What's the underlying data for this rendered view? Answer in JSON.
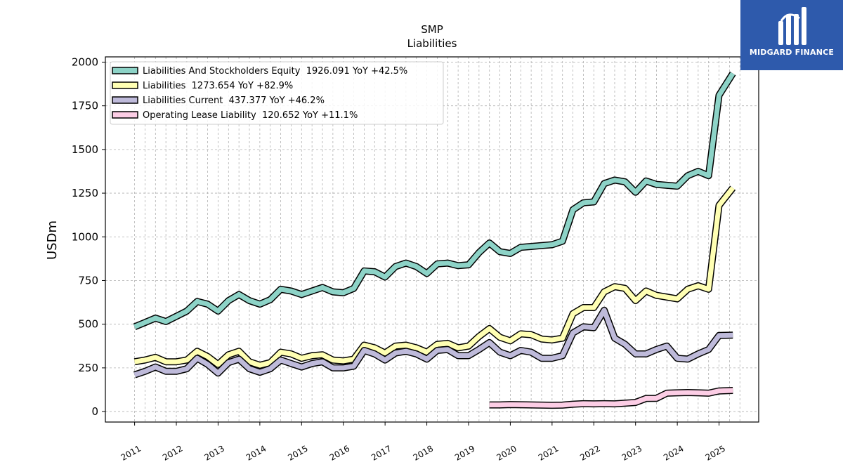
{
  "brand": {
    "name": "MIDGARD FINANCE",
    "bg_color": "#2e5aac"
  },
  "chart_data": {
    "type": "line",
    "title": "SMP",
    "subtitle": "Liabilities",
    "ylabel": "USDm",
    "xlabel": "",
    "ylim": [
      -60,
      2030
    ],
    "xlim": [
      2010.3,
      2025.95
    ],
    "yticks": [
      0,
      250,
      500,
      750,
      1000,
      1250,
      1500,
      1750,
      2000
    ],
    "xticks": [
      "2011",
      "2012",
      "2013",
      "2014",
      "2015",
      "2016",
      "2017",
      "2018",
      "2019",
      "2020",
      "2021",
      "2022",
      "2023",
      "2024",
      "2025"
    ],
    "grid": true,
    "legend_position": "top-left",
    "series": [
      {
        "name": "Liabilities And Stockholders Equity",
        "legend_label": "Liabilities And Stockholders Equity  1926.091 YoY +42.5%",
        "color": "#8dd3c7",
        "points": [
          [
            2011.0,
            485
          ],
          [
            2011.25,
            510
          ],
          [
            2011.5,
            535
          ],
          [
            2011.75,
            515
          ],
          [
            2012.0,
            545
          ],
          [
            2012.25,
            575
          ],
          [
            2012.5,
            630
          ],
          [
            2012.75,
            615
          ],
          [
            2013.0,
            575
          ],
          [
            2013.25,
            635
          ],
          [
            2013.5,
            670
          ],
          [
            2013.75,
            635
          ],
          [
            2014.0,
            615
          ],
          [
            2014.25,
            640
          ],
          [
            2014.5,
            700
          ],
          [
            2014.75,
            690
          ],
          [
            2015.0,
            670
          ],
          [
            2015.25,
            690
          ],
          [
            2015.5,
            710
          ],
          [
            2015.75,
            685
          ],
          [
            2016.0,
            680
          ],
          [
            2016.25,
            705
          ],
          [
            2016.5,
            805
          ],
          [
            2016.75,
            800
          ],
          [
            2017.0,
            770
          ],
          [
            2017.25,
            830
          ],
          [
            2017.5,
            850
          ],
          [
            2017.75,
            830
          ],
          [
            2018.0,
            790
          ],
          [
            2018.25,
            845
          ],
          [
            2018.5,
            850
          ],
          [
            2018.75,
            835
          ],
          [
            2019.0,
            840
          ],
          [
            2019.25,
            910
          ],
          [
            2019.5,
            965
          ],
          [
            2019.75,
            915
          ],
          [
            2020.0,
            905
          ],
          [
            2020.25,
            940
          ],
          [
            2020.5,
            945
          ],
          [
            2020.75,
            950
          ],
          [
            2021.0,
            955
          ],
          [
            2021.25,
            975
          ],
          [
            2021.5,
            1155
          ],
          [
            2021.75,
            1195
          ],
          [
            2022.0,
            1200
          ],
          [
            2022.25,
            1305
          ],
          [
            2022.5,
            1325
          ],
          [
            2022.75,
            1315
          ],
          [
            2023.0,
            1255
          ],
          [
            2023.25,
            1320
          ],
          [
            2023.5,
            1300
          ],
          [
            2023.75,
            1295
          ],
          [
            2024.0,
            1290
          ],
          [
            2024.25,
            1350
          ],
          [
            2024.5,
            1375
          ],
          [
            2024.75,
            1350
          ],
          [
            2025.0,
            1810
          ],
          [
            2025.33,
            1935
          ]
        ]
      },
      {
        "name": "Liabilities",
        "legend_label": "Liabilities  1273.654 YoY +82.9%",
        "color": "#ffffb3",
        "points": [
          [
            2011.0,
            285
          ],
          [
            2011.25,
            295
          ],
          [
            2011.5,
            310
          ],
          [
            2011.75,
            285
          ],
          [
            2012.0,
            285
          ],
          [
            2012.25,
            295
          ],
          [
            2012.5,
            345
          ],
          [
            2012.75,
            315
          ],
          [
            2013.0,
            270
          ],
          [
            2013.25,
            325
          ],
          [
            2013.5,
            345
          ],
          [
            2013.75,
            285
          ],
          [
            2014.0,
            265
          ],
          [
            2014.25,
            280
          ],
          [
            2014.5,
            340
          ],
          [
            2014.75,
            330
          ],
          [
            2015.0,
            305
          ],
          [
            2015.25,
            320
          ],
          [
            2015.5,
            325
          ],
          [
            2015.75,
            295
          ],
          [
            2016.0,
            290
          ],
          [
            2016.25,
            300
          ],
          [
            2016.5,
            380
          ],
          [
            2016.75,
            365
          ],
          [
            2017.0,
            335
          ],
          [
            2017.25,
            375
          ],
          [
            2017.5,
            380
          ],
          [
            2017.75,
            365
          ],
          [
            2018.0,
            340
          ],
          [
            2018.25,
            385
          ],
          [
            2018.5,
            390
          ],
          [
            2018.75,
            365
          ],
          [
            2019.0,
            375
          ],
          [
            2019.25,
            430
          ],
          [
            2019.5,
            475
          ],
          [
            2019.75,
            425
          ],
          [
            2020.0,
            405
          ],
          [
            2020.25,
            445
          ],
          [
            2020.5,
            440
          ],
          [
            2020.75,
            415
          ],
          [
            2021.0,
            410
          ],
          [
            2021.25,
            420
          ],
          [
            2021.5,
            560
          ],
          [
            2021.75,
            595
          ],
          [
            2022.0,
            595
          ],
          [
            2022.25,
            685
          ],
          [
            2022.5,
            715
          ],
          [
            2022.75,
            705
          ],
          [
            2023.0,
            635
          ],
          [
            2023.25,
            690
          ],
          [
            2023.5,
            665
          ],
          [
            2023.75,
            655
          ],
          [
            2024.0,
            645
          ],
          [
            2024.25,
            700
          ],
          [
            2024.5,
            720
          ],
          [
            2024.75,
            700
          ],
          [
            2025.0,
            1180
          ],
          [
            2025.33,
            1280
          ]
        ]
      },
      {
        "name": "Liabilities Current",
        "legend_label": "Liabilities Current  437.377 YoY +46.2%",
        "color": "#bebada",
        "points": [
          [
            2011.0,
            210
          ],
          [
            2011.25,
            230
          ],
          [
            2011.5,
            255
          ],
          [
            2011.75,
            230
          ],
          [
            2012.0,
            230
          ],
          [
            2012.25,
            245
          ],
          [
            2012.5,
            305
          ],
          [
            2012.75,
            270
          ],
          [
            2013.0,
            220
          ],
          [
            2013.25,
            280
          ],
          [
            2013.5,
            300
          ],
          [
            2013.75,
            245
          ],
          [
            2014.0,
            225
          ],
          [
            2014.25,
            245
          ],
          [
            2014.5,
            295
          ],
          [
            2014.75,
            275
          ],
          [
            2015.0,
            255
          ],
          [
            2015.25,
            275
          ],
          [
            2015.5,
            285
          ],
          [
            2015.75,
            250
          ],
          [
            2016.0,
            250
          ],
          [
            2016.25,
            260
          ],
          [
            2016.5,
            350
          ],
          [
            2016.75,
            330
          ],
          [
            2017.0,
            295
          ],
          [
            2017.25,
            335
          ],
          [
            2017.5,
            345
          ],
          [
            2017.75,
            330
          ],
          [
            2018.0,
            300
          ],
          [
            2018.25,
            350
          ],
          [
            2018.5,
            355
          ],
          [
            2018.75,
            320
          ],
          [
            2019.0,
            320
          ],
          [
            2019.25,
            355
          ],
          [
            2019.5,
            395
          ],
          [
            2019.75,
            340
          ],
          [
            2020.0,
            320
          ],
          [
            2020.25,
            350
          ],
          [
            2020.5,
            340
          ],
          [
            2020.75,
            305
          ],
          [
            2021.0,
            305
          ],
          [
            2021.25,
            320
          ],
          [
            2021.5,
            450
          ],
          [
            2021.75,
            485
          ],
          [
            2022.0,
            480
          ],
          [
            2022.25,
            580
          ],
          [
            2022.5,
            420
          ],
          [
            2022.75,
            385
          ],
          [
            2023.0,
            330
          ],
          [
            2023.25,
            330
          ],
          [
            2023.5,
            355
          ],
          [
            2023.75,
            375
          ],
          [
            2024.0,
            305
          ],
          [
            2024.25,
            300
          ],
          [
            2024.5,
            330
          ],
          [
            2024.75,
            355
          ],
          [
            2025.0,
            435
          ],
          [
            2025.33,
            437
          ]
        ]
      },
      {
        "name": "Operating Lease Liability",
        "legend_label": "Operating Lease Liability  120.652 YoY +11.1%",
        "color": "#fccde5",
        "points": [
          [
            2019.5,
            38
          ],
          [
            2019.75,
            38
          ],
          [
            2020.0,
            40
          ],
          [
            2020.25,
            39
          ],
          [
            2020.5,
            38
          ],
          [
            2020.75,
            37
          ],
          [
            2021.0,
            36
          ],
          [
            2021.25,
            37
          ],
          [
            2021.5,
            42
          ],
          [
            2021.75,
            45
          ],
          [
            2022.0,
            44
          ],
          [
            2022.25,
            45
          ],
          [
            2022.5,
            44
          ],
          [
            2022.75,
            48
          ],
          [
            2023.0,
            52
          ],
          [
            2023.25,
            75
          ],
          [
            2023.5,
            76
          ],
          [
            2023.75,
            105
          ],
          [
            2024.0,
            107
          ],
          [
            2024.25,
            109
          ],
          [
            2024.5,
            107
          ],
          [
            2024.75,
            105
          ],
          [
            2025.0,
            118
          ],
          [
            2025.33,
            121
          ]
        ]
      }
    ]
  }
}
